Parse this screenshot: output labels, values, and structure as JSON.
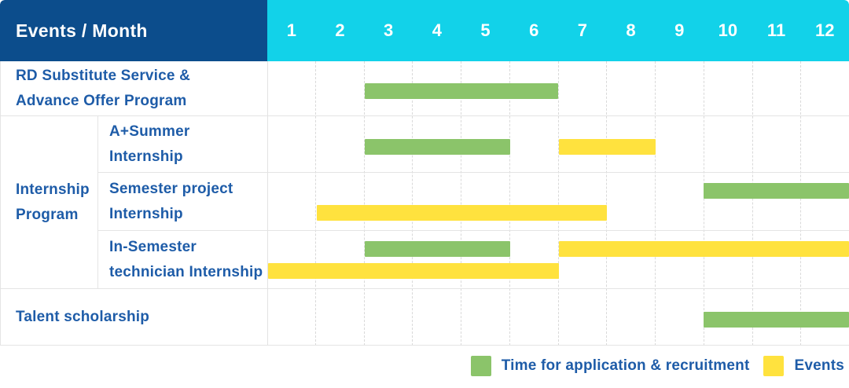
{
  "header": {
    "corner_label": "Events / Month"
  },
  "chart_data": {
    "type": "gantt",
    "unit": "month",
    "title": "Events / Month",
    "months": [
      "1",
      "2",
      "3",
      "4",
      "5",
      "6",
      "7",
      "8",
      "9",
      "10",
      "11",
      "12"
    ],
    "month_range": [
      1,
      12
    ],
    "groups": {
      "Internship Program": [
        "Internship",
        "Program"
      ]
    },
    "rows": [
      {
        "group": "",
        "label": "RD Substitute Service & Advance Offer Program",
        "label_lines": [
          "RD Substitute Service &",
          "Advance Offer Program"
        ],
        "bars": [
          {
            "series": "Time for application & recruitment",
            "color_key": "green",
            "start_month": 3,
            "end_month": 6,
            "lane": "single"
          }
        ]
      },
      {
        "group": "Internship Program",
        "label": "A+Summer Internship",
        "label_lines": [
          "A+Summer",
          "Internship"
        ],
        "bars": [
          {
            "series": "Time for application & recruitment",
            "color_key": "green",
            "start_month": 3,
            "end_month": 5,
            "lane": "single"
          },
          {
            "series": "Events",
            "color_key": "yellow",
            "start_month": 7,
            "end_month": 8,
            "lane": "single"
          }
        ]
      },
      {
        "group": "Internship Program",
        "label": "Semester project Internship",
        "label_lines": [
          "Semester project",
          "Internship"
        ],
        "bars": [
          {
            "series": "Time for application & recruitment",
            "color_key": "green",
            "start_month": 10,
            "end_month": 12,
            "lane": "upper"
          },
          {
            "series": "Events",
            "color_key": "yellow",
            "start_month": 2,
            "end_month": 7,
            "lane": "lower"
          }
        ]
      },
      {
        "group": "Internship Program",
        "label": "In-Semester technician Internship",
        "label_lines": [
          "In-Semester",
          "technician Internship"
        ],
        "bars": [
          {
            "series": "Time for application & recruitment",
            "color_key": "green",
            "start_month": 3,
            "end_month": 5,
            "lane": "upper"
          },
          {
            "series": "Events",
            "color_key": "yellow",
            "start_month": 7,
            "end_month": 12,
            "lane": "upper"
          },
          {
            "series": "Events",
            "color_key": "yellow",
            "start_month": 1,
            "end_month": 6,
            "lane": "lower"
          }
        ]
      },
      {
        "group": "",
        "label": "Talent scholarship",
        "label_lines": [
          "Talent scholarship"
        ],
        "bars": [
          {
            "series": "Time for application & recruitment",
            "color_key": "green",
            "start_month": 10,
            "end_month": 12,
            "lane": "single"
          }
        ]
      }
    ],
    "legend": [
      {
        "color_key": "green",
        "label": "Time for application & recruitment"
      },
      {
        "color_key": "yellow",
        "label": "Events"
      }
    ],
    "colors": {
      "green": "#8bc46a",
      "yellow": "#ffe23e",
      "header_bg": "#0c4d8c",
      "months_bg": "#12d2e9",
      "label_text": "#1e5ca8",
      "grid_line": "#d9d9d9",
      "row_border": "#e4e4e4"
    },
    "legend_position": "bottom-right",
    "grid": "dashed-vertical-month-lines"
  }
}
